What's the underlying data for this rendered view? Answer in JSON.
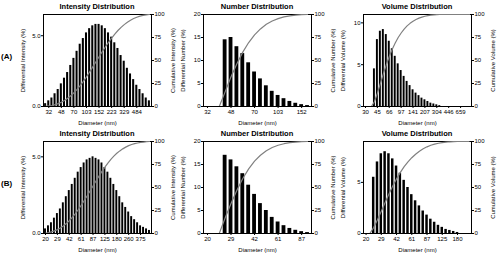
{
  "panel_labels": [
    "(A)",
    "(B)"
  ],
  "chart_data": [
    {
      "type": "bar",
      "title": "Intensity Distribution",
      "x_label": "Diameter (nm)",
      "y_label": "Differential Intensity (%)",
      "y2_label": "Cumulative Intensity (%)",
      "categories": [
        null,
        "32",
        null,
        null,
        null,
        "48",
        null,
        null,
        null,
        "70",
        null,
        null,
        null,
        "103",
        null,
        null,
        null,
        "152",
        null,
        null,
        null,
        "223",
        null,
        null,
        null,
        "329",
        null,
        null,
        null,
        "484",
        null,
        null,
        null,
        null
      ],
      "series": [
        {
          "type": "bar",
          "color": "#000000",
          "values": [
            0.2,
            0.4,
            0.6,
            0.9,
            1.2,
            1.6,
            2.0,
            2.4,
            2.9,
            3.4,
            3.9,
            4.4,
            4.8,
            5.2,
            5.5,
            5.7,
            5.8,
            5.8,
            5.7,
            5.5,
            5.2,
            4.9,
            4.5,
            4.1,
            3.6,
            3.2,
            2.7,
            2.3,
            1.9,
            1.5,
            1.2,
            0.9,
            0.6,
            0.4
          ]
        },
        {
          "type": "line",
          "axis": "y2",
          "color": "#808080",
          "values": [
            0.2,
            0.6,
            1.1,
            2.0,
            3.1,
            4.7,
            6.6,
            8.9,
            11.6,
            14.9,
            18.6,
            22.8,
            27.4,
            32.3,
            37.6,
            43.0,
            48.5,
            54.1,
            59.5,
            64.7,
            69.7,
            74.4,
            78.6,
            82.6,
            86.0,
            89.0,
            91.6,
            93.8,
            95.6,
            97.0,
            98.2,
            99.0,
            99.6,
            100
          ]
        }
      ],
      "ylim": [
        0,
        6.5
      ],
      "yticks": [
        0,
        5
      ],
      "y2lim": [
        0,
        100
      ],
      "y2ticks": [
        0,
        25,
        50,
        75,
        100
      ]
    },
    {
      "type": "bar",
      "title": "Number Distribution",
      "x_label": "Diameter (nm)",
      "y_label": "Differential Number (%)",
      "y2_label": "Cumulative Number (%)",
      "categories": [
        "32",
        null,
        null,
        null,
        "48",
        null,
        null,
        null,
        "70",
        null,
        null,
        null,
        "103",
        null,
        null,
        null,
        "152",
        null
      ],
      "series": [
        {
          "type": "bar",
          "color": "#000000",
          "values": [
            0,
            0,
            0,
            14.5,
            15.0,
            13.0,
            11.5,
            9.5,
            7.5,
            6.0,
            4.5,
            3.3,
            2.4,
            1.7,
            1.1,
            0.7,
            0.4,
            0.2
          ]
        },
        {
          "type": "line",
          "axis": "y2",
          "color": "#808080",
          "values": [
            0,
            0,
            0,
            15.9,
            32.3,
            46.5,
            59.1,
            69.5,
            77.8,
            84.3,
            89.3,
            92.9,
            95.5,
            97.4,
            98.6,
            99.3,
            99.8,
            100
          ]
        }
      ],
      "ylim": [
        0,
        20
      ],
      "yticks": [
        0,
        5,
        10,
        15,
        20
      ],
      "y2lim": [
        0,
        100
      ],
      "y2ticks": [
        0,
        25,
        50,
        75,
        100
      ]
    },
    {
      "type": "bar",
      "title": "Volume Distribution",
      "x_label": "Diameter (nm)",
      "y_label": "Differential Volume (%)",
      "y2_label": "Cumulative Volume (%)",
      "categories": [
        "30",
        null,
        null,
        null,
        "45",
        null,
        null,
        null,
        "66",
        null,
        null,
        null,
        "97",
        null,
        null,
        null,
        "141",
        null,
        null,
        null,
        "207",
        null,
        null,
        null,
        "304",
        null,
        null,
        null,
        "446",
        null,
        null,
        null,
        "659",
        null,
        null,
        null
      ],
      "series": [
        {
          "type": "bar",
          "color": "#000000",
          "values": [
            0,
            0,
            0,
            4.5,
            8.0,
            9.0,
            9.2,
            8.6,
            7.8,
            6.9,
            6.0,
            5.1,
            4.3,
            3.6,
            3.0,
            2.5,
            2.0,
            1.6,
            1.3,
            1.0,
            0.8,
            0.6,
            0.4,
            0.3,
            0.2,
            0.1,
            0,
            0,
            0,
            0,
            0,
            0,
            0,
            0,
            0,
            0
          ]
        },
        {
          "type": "line",
          "axis": "y2",
          "color": "#808080",
          "values": [
            0,
            0,
            0,
            5.2,
            14.4,
            24.8,
            35.4,
            45.3,
            54.3,
            62.2,
            69.1,
            75.0,
            79.9,
            84.1,
            87.6,
            90.4,
            92.7,
            94.6,
            96.1,
            97.2,
            98.1,
            98.8,
            99.3,
            99.6,
            99.9,
            100,
            100,
            100,
            100,
            100,
            100,
            100,
            100,
            100,
            100,
            100
          ]
        }
      ],
      "ylim": [
        0,
        11
      ],
      "yticks": [
        0,
        5,
        10
      ],
      "y2lim": [
        0,
        100
      ],
      "y2ticks": [
        0,
        25,
        50,
        75,
        100
      ]
    },
    {
      "type": "bar",
      "title": "Intensity Distribution",
      "x_label": "Diameter (nm)",
      "y_label": "Differential Intensity (%)",
      "y2_label": "Cumulative Intensity (%)",
      "categories": [
        "20",
        null,
        null,
        null,
        "29",
        null,
        null,
        null,
        "42",
        null,
        null,
        null,
        "61",
        null,
        null,
        null,
        "87",
        null,
        null,
        null,
        "125",
        null,
        null,
        null,
        "180",
        null,
        null,
        null,
        "260",
        null,
        null,
        null,
        "375",
        null,
        null,
        null
      ],
      "series": [
        {
          "type": "bar",
          "color": "#000000",
          "values": [
            0.3,
            0.5,
            0.7,
            1.0,
            1.3,
            1.6,
            2.0,
            2.4,
            2.8,
            3.2,
            3.6,
            4.0,
            4.3,
            4.6,
            4.8,
            4.9,
            5.0,
            4.9,
            4.8,
            4.6,
            4.3,
            4.0,
            3.6,
            3.2,
            2.8,
            2.4,
            2.0,
            1.7,
            1.4,
            1.1,
            0.9,
            0.7,
            0.5,
            0.4,
            0.3,
            0.2
          ]
        },
        {
          "type": "line",
          "axis": "y2",
          "color": "#808080",
          "values": [
            0.3,
            0.9,
            1.7,
            2.8,
            4.2,
            5.9,
            8.1,
            10.8,
            13.9,
            17.4,
            21.4,
            25.8,
            30.5,
            35.6,
            40.8,
            46.2,
            51.7,
            57.1,
            62.4,
            67.5,
            72.2,
            76.6,
            80.6,
            84.1,
            87.2,
            89.8,
            92.0,
            93.9,
            95.5,
            96.7,
            97.7,
            98.4,
            99.0,
            99.4,
            99.8,
            100
          ]
        }
      ],
      "ylim": [
        0,
        6
      ],
      "yticks": [
        0,
        5
      ],
      "y2lim": [
        0,
        100
      ],
      "y2ticks": [
        0,
        25,
        50,
        75,
        100
      ]
    },
    {
      "type": "bar",
      "title": "Number Distribution",
      "x_label": "Diameter (nm)",
      "y_label": "Differential Number (%)",
      "y2_label": "Cumulative Number (%)",
      "categories": [
        "20",
        null,
        null,
        null,
        "29",
        null,
        null,
        null,
        "42",
        null,
        null,
        null,
        "61",
        null,
        null,
        null,
        "87",
        null
      ],
      "series": [
        {
          "type": "bar",
          "color": "#000000",
          "values": [
            0,
            0,
            0,
            17,
            16,
            14.5,
            13,
            10.5,
            8.5,
            6.5,
            5,
            3.5,
            2.5,
            1.7,
            1.1,
            0.7,
            0.4,
            0.2
          ]
        },
        {
          "type": "line",
          "axis": "y2",
          "color": "#808080",
          "values": [
            0,
            0,
            0,
            16.8,
            32.6,
            47.0,
            59.8,
            70.2,
            78.6,
            85.1,
            90.0,
            93.5,
            95.9,
            97.6,
            98.7,
            99.4,
            99.8,
            100
          ]
        }
      ],
      "ylim": [
        0,
        20
      ],
      "yticks": [
        0,
        5,
        10,
        15,
        20
      ],
      "y2lim": [
        0,
        100
      ],
      "y2ticks": [
        0,
        25,
        50,
        75,
        100
      ]
    },
    {
      "type": "bar",
      "title": "Volume Distribution",
      "x_label": "Diameter (nm)",
      "y_label": "Differential Volume (%)",
      "y2_label": "Cumulative Volume (%)",
      "categories": [
        "20",
        null,
        null,
        null,
        "29",
        null,
        null,
        null,
        "42",
        null,
        null,
        null,
        "61",
        null,
        null,
        null,
        "87",
        null,
        null,
        null,
        "125",
        null,
        null,
        null,
        "180",
        null,
        null,
        null
      ],
      "series": [
        {
          "type": "bar",
          "color": "#000000",
          "values": [
            0,
            0,
            5.5,
            7.0,
            7.8,
            8.0,
            7.8,
            7.3,
            6.6,
            5.9,
            5.2,
            4.5,
            3.8,
            3.2,
            2.7,
            2.2,
            1.8,
            1.4,
            1.1,
            0.8,
            0.6,
            0.4,
            0.3,
            0.2,
            0.1,
            0,
            0,
            0
          ]
        },
        {
          "type": "line",
          "axis": "y2",
          "color": "#808080",
          "values": [
            0,
            0,
            6.5,
            14.9,
            24.1,
            33.6,
            42.9,
            51.6,
            59.4,
            66.4,
            72.6,
            77.9,
            82.4,
            86.2,
            89.5,
            92.1,
            94.2,
            95.9,
            97.2,
            98.1,
            98.8,
            99.3,
            99.7,
            99.9,
            100,
            100,
            100,
            100
          ]
        }
      ],
      "ylim": [
        0,
        9
      ],
      "yticks": [
        0,
        5
      ],
      "y2lim": [
        0,
        100
      ],
      "y2ticks": [
        0,
        25,
        50,
        75,
        100
      ]
    }
  ]
}
